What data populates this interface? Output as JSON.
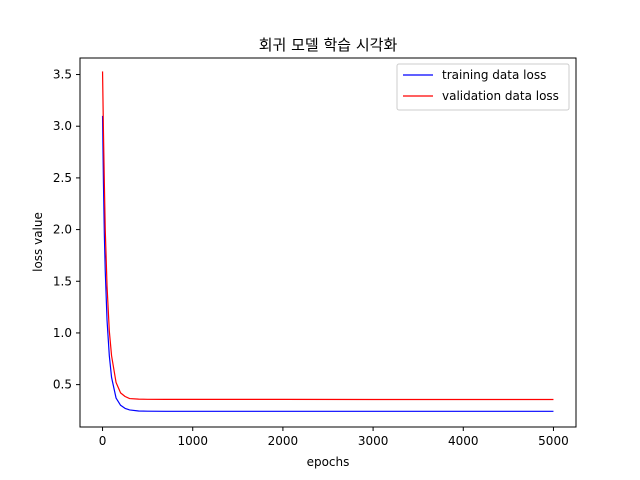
{
  "chart_data": {
    "type": "line",
    "title": "회귀 모델 학습 시각화",
    "xlabel": "epochs",
    "ylabel": "loss value",
    "xlim": [
      -250,
      5250
    ],
    "ylim": [
      0.09,
      3.66
    ],
    "xticks": [
      0,
      1000,
      2000,
      3000,
      4000,
      5000
    ],
    "yticks": [
      0.5,
      1.0,
      1.5,
      2.0,
      2.5,
      3.0,
      3.5
    ],
    "xtick_labels": [
      "0",
      "1000",
      "2000",
      "3000",
      "4000",
      "5000"
    ],
    "ytick_labels": [
      "0.5",
      "1.0",
      "1.5",
      "2.0",
      "2.5",
      "3.0",
      "3.5"
    ],
    "legend_position": "top-right",
    "grid": false,
    "series": [
      {
        "name": "training data loss",
        "color": "#0000ff",
        "x": [
          0,
          10,
          20,
          30,
          50,
          75,
          100,
          150,
          200,
          250,
          300,
          400,
          500,
          700,
          1000,
          2000,
          3000,
          4000,
          5000
        ],
        "y": [
          3.1,
          2.45,
          1.95,
          1.6,
          1.12,
          0.78,
          0.57,
          0.37,
          0.3,
          0.27,
          0.255,
          0.245,
          0.243,
          0.242,
          0.242,
          0.242,
          0.242,
          0.242,
          0.242
        ]
      },
      {
        "name": "validation data loss",
        "color": "#ff0000",
        "x": [
          0,
          10,
          20,
          30,
          50,
          75,
          100,
          150,
          200,
          250,
          300,
          400,
          500,
          700,
          1000,
          2000,
          3000,
          4000,
          5000
        ],
        "y": [
          3.53,
          2.95,
          2.45,
          2.0,
          1.45,
          1.02,
          0.78,
          0.52,
          0.42,
          0.385,
          0.365,
          0.36,
          0.358,
          0.357,
          0.357,
          0.357,
          0.356,
          0.356,
          0.356
        ]
      }
    ]
  }
}
